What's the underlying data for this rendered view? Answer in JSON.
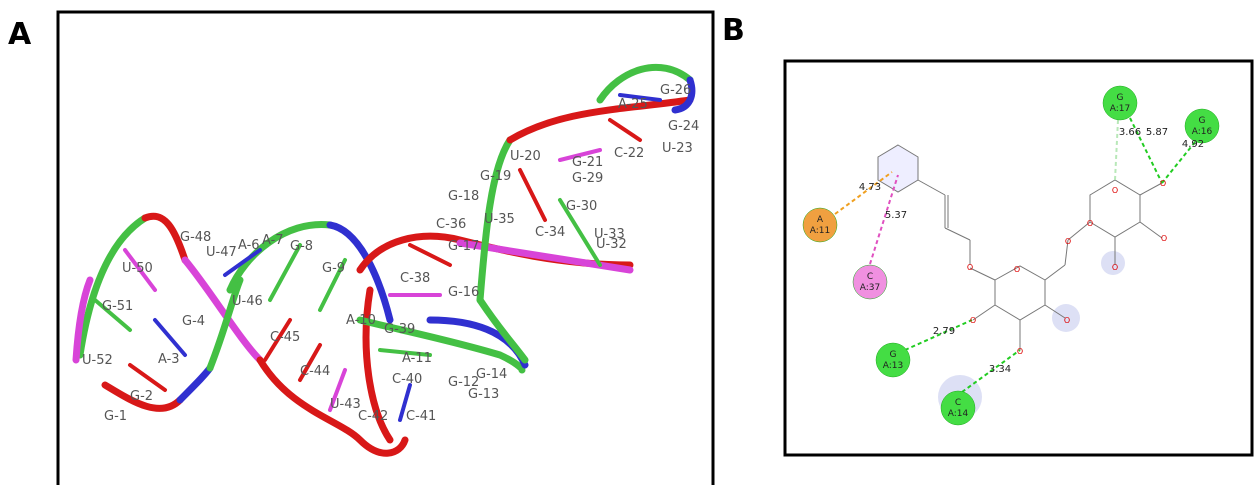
{
  "panels": [
    {
      "label": "A",
      "residue_labels": [
        "G-26",
        "A-25",
        "G-24",
        "U-23",
        "C-22",
        "U-20",
        "G-21",
        "G-29",
        "G-19",
        "G-18",
        "G-30",
        "C-36",
        "U-35",
        "C-34",
        "U-33",
        "U-32",
        "G-17",
        "G-48",
        "U-47",
        "A-6",
        "A-7",
        "G-8",
        "G-9",
        "U-50",
        "U-46",
        "G-51",
        "G-4",
        "C-45",
        "A-10",
        "G-39",
        "C-38",
        "G-16",
        "A-3",
        "U-52",
        "G-2",
        "G-1",
        "C-44",
        "A-11",
        "C-40",
        "G-12",
        "G-14",
        "G-13",
        "U-43",
        "C-42",
        "C-41"
      ]
    },
    {
      "label": "B",
      "residues": [
        {
          "name": "G",
          "id": "A:17"
        },
        {
          "name": "G",
          "id": "A:16"
        },
        {
          "name": "A",
          "id": "A:11"
        },
        {
          "name": "C",
          "id": "A:37"
        },
        {
          "name": "G",
          "id": "A:13"
        },
        {
          "name": "C",
          "id": "A:14"
        }
      ],
      "distances": [
        3.66,
        5.87,
        4.92,
        4.73,
        5.37,
        2.79,
        3.34
      ],
      "oxygen_label": "O"
    }
  ]
}
